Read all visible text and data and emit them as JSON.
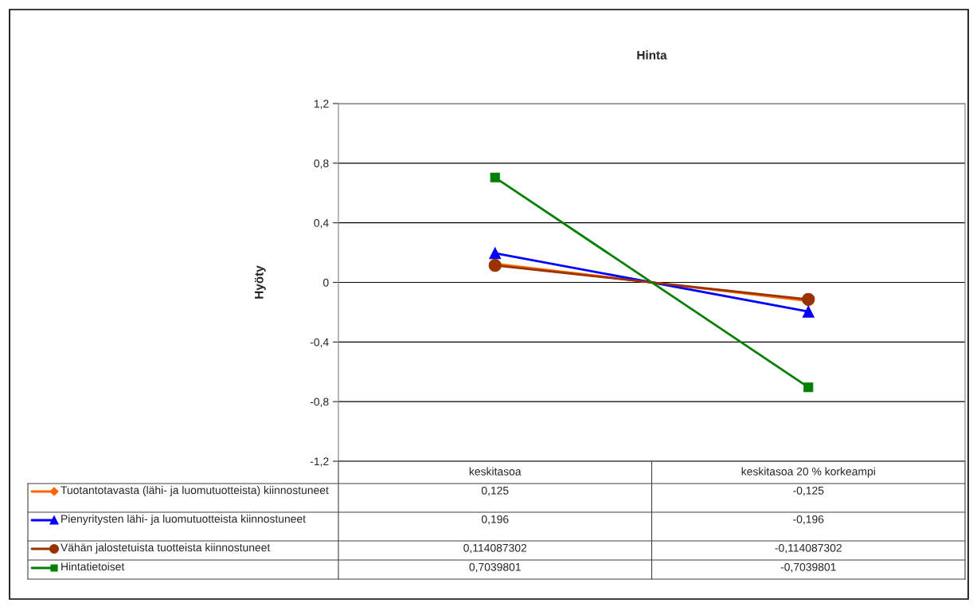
{
  "chart_data": {
    "type": "line",
    "title": "Hinta",
    "ylabel": "Hyöty",
    "categories": [
      "keskitasoa",
      "keskitasoa 20 % korkeampi"
    ],
    "series": [
      {
        "name": "Tuotantotavasta (lähi- ja luomutuotteista) kiinnostuneet",
        "color": "#ff6600",
        "marker": "diamond",
        "values": [
          0.125,
          -0.125
        ],
        "value_labels": [
          "0,125",
          "-0,125"
        ]
      },
      {
        "name": "Pienyritysten lähi- ja luomutuotteista kiinnostuneet",
        "color": "#0000ff",
        "marker": "triangle",
        "values": [
          0.196,
          -0.196
        ],
        "value_labels": [
          "0,196",
          "-0,196"
        ]
      },
      {
        "name": "Vähän jalostetuista tuotteista kiinnostuneet",
        "color": "#993300",
        "marker": "circle",
        "values": [
          0.114087302,
          -0.114087302
        ],
        "value_labels": [
          "0,114087302",
          "-0,114087302"
        ]
      },
      {
        "name": "Hintatietoiset",
        "color": "#008000",
        "marker": "square",
        "values": [
          0.7039801,
          -0.7039801
        ],
        "value_labels": [
          "0,7039801",
          "-0,7039801"
        ]
      }
    ],
    "ylim": [
      -1.2,
      1.2
    ],
    "yticks": [
      {
        "value": -1.2,
        "label": "-1,2"
      },
      {
        "value": -0.8,
        "label": "-0,8"
      },
      {
        "value": -0.4,
        "label": "-0,4"
      },
      {
        "value": 0,
        "label": "0"
      },
      {
        "value": 0.4,
        "label": "0,4"
      },
      {
        "value": 0.8,
        "label": "0,8"
      },
      {
        "value": 1.2,
        "label": "1,2"
      }
    ],
    "grid": "y",
    "legend": "bottom"
  }
}
